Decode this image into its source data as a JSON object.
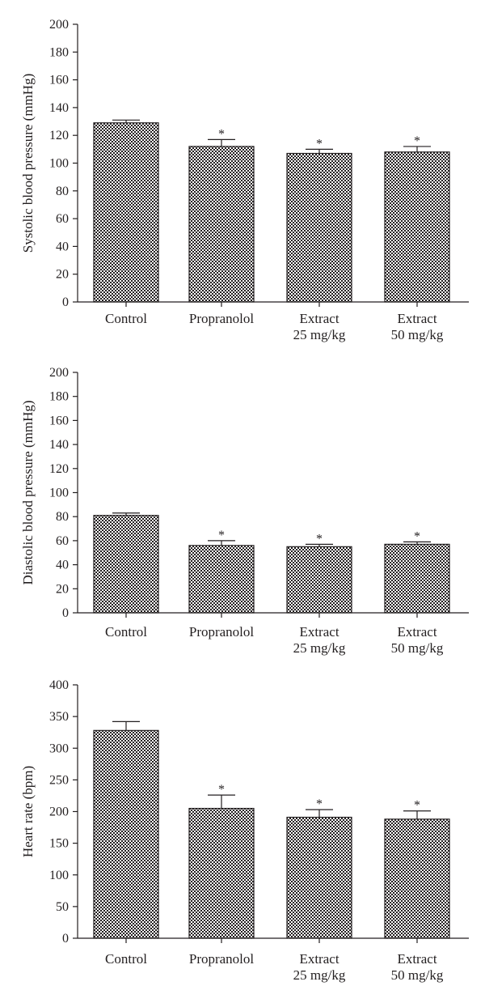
{
  "chart_data": [
    {
      "type": "bar",
      "ylabel": "Systolic blood pressure (mmHg)",
      "ylim": [
        0,
        200
      ],
      "yticks": [
        0,
        20,
        40,
        60,
        80,
        100,
        120,
        140,
        160,
        180,
        200
      ],
      "categories": [
        [
          "Control"
        ],
        [
          "Propranolol"
        ],
        [
          "Extract",
          "25 mg/kg"
        ],
        [
          "Extract",
          "50 mg/kg"
        ]
      ],
      "values": [
        129,
        112,
        107,
        108
      ],
      "errors": [
        2,
        5,
        3,
        4
      ],
      "significance": [
        "",
        "*",
        "*",
        "*"
      ],
      "pattern": "checkerboard",
      "grid": false
    },
    {
      "type": "bar",
      "ylabel": "Diastolic blood pressure (mmHg)",
      "ylim": [
        0,
        200
      ],
      "yticks": [
        0,
        20,
        40,
        60,
        80,
        100,
        120,
        140,
        160,
        180,
        200
      ],
      "categories": [
        [
          "Control"
        ],
        [
          "Propranolol"
        ],
        [
          "Extract",
          "25 mg/kg"
        ],
        [
          "Extract",
          "50 mg/kg"
        ]
      ],
      "values": [
        81,
        56,
        55,
        57
      ],
      "errors": [
        2,
        4,
        2,
        2
      ],
      "significance": [
        "",
        "*",
        "*",
        "*"
      ],
      "pattern": "checkerboard",
      "grid": false
    },
    {
      "type": "bar",
      "ylabel": "Heart rate (bpm)",
      "ylim": [
        0,
        400
      ],
      "yticks": [
        0,
        50,
        100,
        150,
        200,
        250,
        300,
        350,
        400
      ],
      "categories": [
        [
          "Control"
        ],
        [
          "Propranolol"
        ],
        [
          "Extract",
          "25 mg/kg"
        ],
        [
          "Extract",
          "50 mg/kg"
        ]
      ],
      "values": [
        328,
        205,
        191,
        188
      ],
      "errors": [
        14,
        21,
        12,
        13
      ],
      "significance": [
        "",
        "*",
        "*",
        "*"
      ],
      "pattern": "checkerboard",
      "grid": false
    }
  ]
}
